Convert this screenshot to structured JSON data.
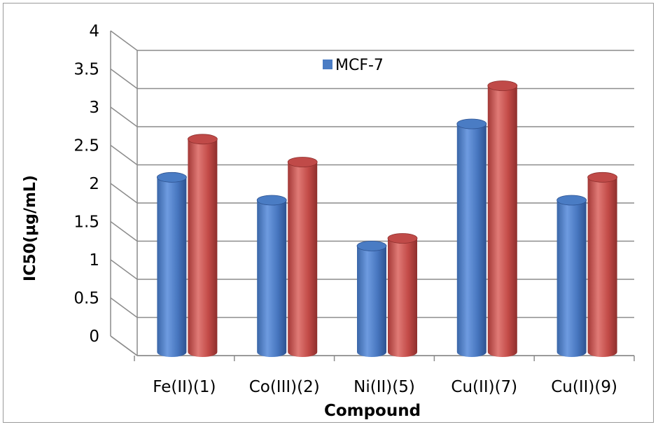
{
  "chart_data": {
    "type": "bar",
    "title": "",
    "xlabel": "Compound",
    "ylabel": "IC50(µg/mL)",
    "ylim": [
      0,
      4
    ],
    "yticks": [
      "0",
      "0.5",
      "1",
      "1.5",
      "2",
      "2.5",
      "3",
      "3.5",
      "4"
    ],
    "categories": [
      "Fe(II)(1)",
      "Co(III)(2)",
      "Ni(II)(5)",
      "Cu(II)(7)",
      "Cu(II)(9)"
    ],
    "series": [
      {
        "name": "MCF-7",
        "values": [
          2.3,
          2.0,
          1.4,
          3.0,
          2.0
        ],
        "color": "#4a7cc4"
      },
      {
        "name": "",
        "values": [
          2.8,
          2.5,
          1.5,
          3.5,
          2.3
        ],
        "color": "#c04a48"
      }
    ],
    "grid": true,
    "legend_position": "top-center",
    "style": "3d-cylinder"
  }
}
